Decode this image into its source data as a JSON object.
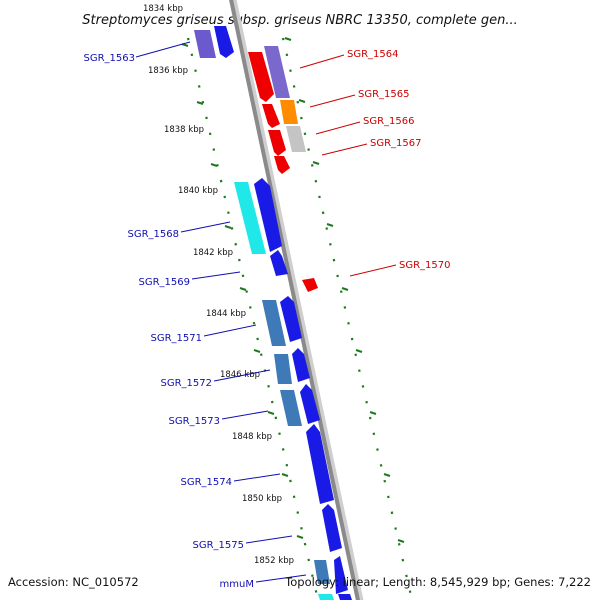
{
  "header": {
    "title": "Streptomyces griseus subsp. griseus NBRC 13350, complete gen..."
  },
  "footer": {
    "accession": "Accession: NC_010572",
    "summary": "Topology: linear; Length: 8,545,929 bp; Genes: 7,222"
  },
  "colors": {
    "backbone": "#8a8a8a",
    "tick": "#1f7a1f",
    "left_label": "#1010b0",
    "right_label": "#cc0000"
  },
  "kbp_markers": [
    "1834 kbp",
    "1836 kbp",
    "1838 kbp",
    "1840 kbp",
    "1842 kbp",
    "1844 kbp",
    "1846 kbp",
    "1848 kbp",
    "1850 kbp",
    "1852 kbp"
  ],
  "left_genes": [
    {
      "label": "SGR_1563"
    },
    {
      "label": "SGR_1568"
    },
    {
      "label": "SGR_1569"
    },
    {
      "label": "SGR_1571"
    },
    {
      "label": "SGR_1572"
    },
    {
      "label": "SGR_1573"
    },
    {
      "label": "SGR_1574"
    },
    {
      "label": "SGR_1575"
    },
    {
      "label": "mmuM"
    }
  ],
  "right_genes": [
    {
      "label": "SGR_1564"
    },
    {
      "label": "SGR_1565"
    },
    {
      "label": "SGR_1566"
    },
    {
      "label": "SGR_1567"
    },
    {
      "label": "SGR_1570"
    }
  ]
}
